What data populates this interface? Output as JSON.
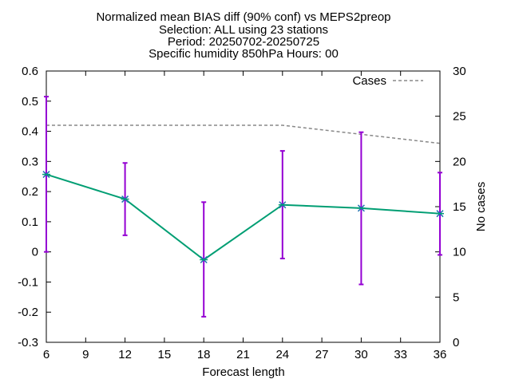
{
  "chart_data": {
    "type": "line",
    "title_lines": [
      "Normalized mean BIAS diff (90% conf) vs MEPS2preop",
      "Selection: ALL using    23 stations",
      "Period: 20250702-20250725",
      "Specific humidity 850hPa   Hours: 00"
    ],
    "xlabel": "Forecast length",
    "ylabel": "",
    "y2label": "No cases",
    "xlim": [
      6,
      36
    ],
    "ylim": [
      -0.3,
      0.6
    ],
    "y2lim": [
      0,
      30
    ],
    "xticks": [
      "6",
      "9",
      "12",
      "15",
      "18",
      "21",
      "24",
      "27",
      "30",
      "33",
      "36"
    ],
    "yticks": [
      "0.6",
      "0.5",
      "0.4",
      "0.3",
      "0.2",
      "0.1",
      "0",
      "-0.1",
      "-0.2",
      "-0.3"
    ],
    "y2ticks": [
      "30",
      "25",
      "20",
      "15",
      "10",
      "5",
      "0"
    ],
    "legend_placement": "top-right",
    "grid": false,
    "series": [
      {
        "name": "",
        "color": "#009e73",
        "errorbar_color": "#9400d3",
        "x": [
          6,
          12,
          18,
          24,
          30,
          36
        ],
        "y": [
          0.257,
          0.175,
          -0.026,
          0.156,
          0.145,
          0.127
        ],
        "err_low": [
          0.0,
          0.055,
          -0.215,
          -0.022,
          -0.108,
          -0.01
        ],
        "err_high": [
          0.515,
          0.295,
          0.165,
          0.335,
          0.397,
          0.263
        ]
      },
      {
        "name": "Cases",
        "color": "#888888",
        "axis": "y2",
        "style": "dashed",
        "x": [
          6,
          12,
          18,
          24,
          30,
          36
        ],
        "y": [
          24.0,
          24.0,
          24.0,
          24.0,
          23.0,
          22.0
        ]
      }
    ]
  }
}
